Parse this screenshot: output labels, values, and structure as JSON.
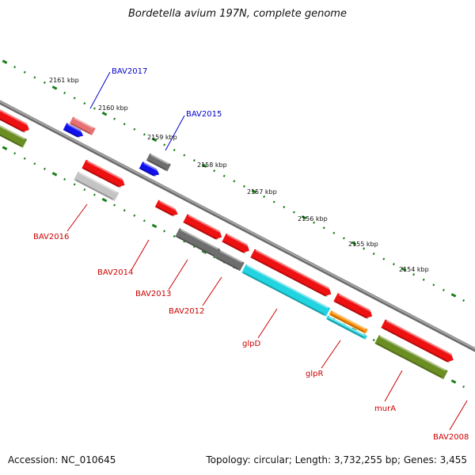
{
  "title": "Bordetella avium 197N, complete genome",
  "accession": "Accession: NC_010645",
  "stats": "Topology: circular; Length: 3,732,255 bp; Genes: 3,455",
  "colors": {
    "backbone": "#888888",
    "ruler_ticks": "#1a7f1a",
    "label_forward": "#0000cc",
    "label_reverse": "#cc0000",
    "feature_red": "#ee1111",
    "feature_pink": "#e87070",
    "feature_blue": "#1111ee",
    "feature_grey": "#6e6e6e",
    "feature_lightgrey": "#c4c4c4",
    "feature_olive": "#6b8e23",
    "feature_cyan": "#22d3e0",
    "feature_orange": "#ff8c00"
  },
  "ruler_labels": [
    "2161 kbp",
    "2160 kbp",
    "2159 kbp",
    "2158 kbp",
    "2157 kbp",
    "2156 kbp",
    "2155 kbp",
    "2154 kbp"
  ],
  "gene_labels": {
    "forward": [
      "BAV2017",
      "BAV2015"
    ],
    "reverse": [
      "BAV2016",
      "BAV2014",
      "BAV2013",
      "BAV2012",
      "glpD",
      "glpR",
      "murA",
      "BAV2008"
    ]
  }
}
